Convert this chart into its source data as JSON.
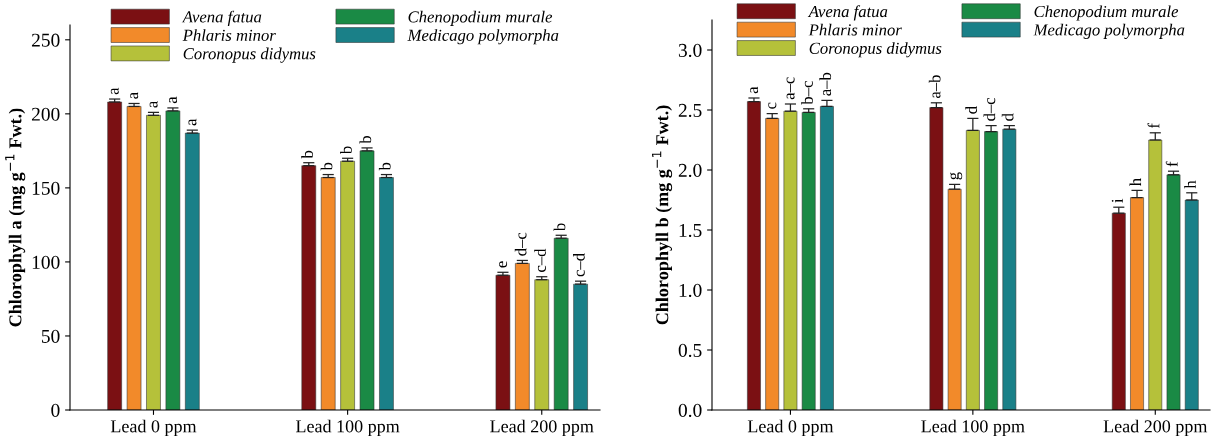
{
  "chart_data": [
    {
      "type": "bar",
      "ylabel": "Chlorophyll a (mg g$^{−1}$ Fwt.)",
      "categories": [
        "Lead 0 ppm",
        "Lead 100 ppm",
        "Lead 200 ppm"
      ],
      "ylim": [
        0,
        260
      ],
      "yticks": [
        0,
        50,
        100,
        150,
        200,
        250
      ],
      "legend": "top",
      "grid": false,
      "series": [
        {
          "name": "Avena fatua",
          "color": "#7b1013",
          "values": [
            208,
            165,
            91
          ],
          "errors": [
            2,
            2,
            2
          ],
          "value_labels": [
            "a",
            "b",
            "e"
          ]
        },
        {
          "name": "Phlaris minor",
          "color": "#f28a2a",
          "values": [
            205,
            157,
            99
          ],
          "errors": [
            2,
            2,
            2
          ],
          "value_labels": [
            "a",
            "b",
            "d–c"
          ]
        },
        {
          "name": "Coronopus didymus",
          "color": "#b5c13a",
          "values": [
            199,
            168,
            88
          ],
          "errors": [
            2,
            2,
            2
          ],
          "value_labels": [
            "a",
            "b",
            "c–d"
          ]
        },
        {
          "name": "Chenopodium murale",
          "color": "#1a8a45",
          "values": [
            202,
            175,
            116
          ],
          "errors": [
            2,
            2,
            2
          ],
          "value_labels": [
            "a",
            "b",
            "b"
          ]
        },
        {
          "name": "Medicago polymorpha",
          "color": "#1a8088",
          "values": [
            187,
            157,
            85
          ],
          "errors": [
            2,
            2,
            2
          ],
          "value_labels": [
            "a",
            "b",
            "c–d"
          ]
        }
      ]
    },
    {
      "type": "bar",
      "ylabel": "Chlorophyll b (mg g$^{−1}$ Fwt.)",
      "categories": [
        "Lead 0 ppm",
        "Lead 100 ppm",
        "Lead 200 ppm"
      ],
      "ylim": [
        0,
        3.25
      ],
      "yticks": [
        {
          "value": 0,
          "label": "0.0"
        },
        0.5,
        {
          "value": 1,
          "label": "1.0"
        },
        1.5,
        {
          "value": 2,
          "label": "2.0"
        },
        2.5,
        {
          "value": 3,
          "label": "3.0"
        }
      ],
      "legend": "top",
      "grid": false,
      "series": [
        {
          "name": "Avena fatua",
          "color": "#7b1013",
          "values": [
            2.57,
            2.52,
            1.64
          ],
          "errors": [
            0.03,
            0.04,
            0.05
          ],
          "value_labels": [
            "a",
            "a–b",
            "i"
          ]
        },
        {
          "name": "Phlaris minor",
          "color": "#f28a2a",
          "values": [
            2.43,
            1.84,
            1.77
          ],
          "errors": [
            0.04,
            0.04,
            0.06
          ],
          "value_labels": [
            "c",
            "g",
            "h"
          ]
        },
        {
          "name": "Coronopus didymus",
          "color": "#b5c13a",
          "values": [
            2.49,
            2.33,
            2.25
          ],
          "errors": [
            0.06,
            0.1,
            0.06
          ],
          "value_labels": [
            "a–c",
            "d",
            "f"
          ]
        },
        {
          "name": "Chenopodium murale",
          "color": "#1a8a45",
          "values": [
            2.48,
            2.32,
            1.96
          ],
          "errors": [
            0.03,
            0.05,
            0.03
          ],
          "value_labels": [
            "b–c",
            "d–c",
            "f"
          ]
        },
        {
          "name": "Medicago polymorpha",
          "color": "#1a8088",
          "values": [
            2.53,
            2.34,
            1.75
          ],
          "errors": [
            0.05,
            0.03,
            0.06
          ],
          "value_labels": [
            "a–b",
            "d",
            "h"
          ]
        }
      ]
    }
  ]
}
